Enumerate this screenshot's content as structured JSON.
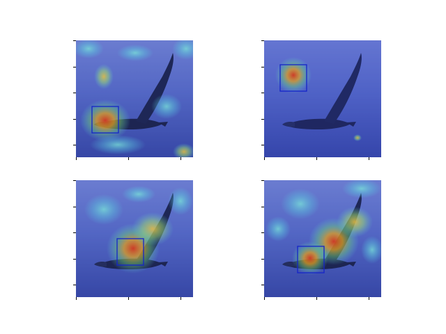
{
  "figure": {
    "panels": [
      {
        "id": "top-left"
      },
      {
        "id": "top-right"
      },
      {
        "id": "bottom-left"
      },
      {
        "id": "bottom-right"
      }
    ],
    "watermark_text": "",
    "colors": {
      "sky": "#8c96d0",
      "sea": "#3c4f9a",
      "overlay": "#2a3bd6",
      "box": "#1424c8",
      "bird": "#1a1f2e"
    }
  }
}
